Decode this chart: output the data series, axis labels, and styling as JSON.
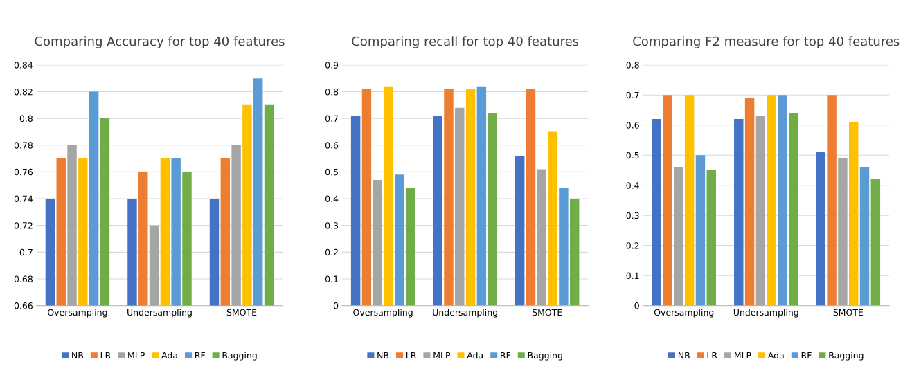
{
  "chart_data": [
    {
      "type": "bar",
      "title": "Comparing Accuracy for top 40 features",
      "categories": [
        "Oversampling",
        "Undersampling",
        "SMOTE"
      ],
      "series": [
        {
          "name": "NB",
          "color": "#4472c4",
          "values": [
            0.74,
            0.74,
            0.74
          ]
        },
        {
          "name": "LR",
          "color": "#ed7d31",
          "values": [
            0.77,
            0.76,
            0.77
          ]
        },
        {
          "name": "MLP",
          "color": "#a5a5a5",
          "values": [
            0.78,
            0.72,
            0.78
          ]
        },
        {
          "name": "Ada",
          "color": "#ffc000",
          "values": [
            0.77,
            0.77,
            0.81
          ]
        },
        {
          "name": "RF",
          "color": "#5b9bd5",
          "values": [
            0.82,
            0.77,
            0.83
          ]
        },
        {
          "name": "Bagging",
          "color": "#70ad47",
          "values": [
            0.8,
            0.76,
            0.81
          ]
        }
      ],
      "ylim": [
        0.66,
        0.84
      ],
      "yticks": [
        0.66,
        0.68,
        0.7,
        0.72,
        0.74,
        0.76,
        0.78,
        0.8,
        0.82,
        0.84
      ],
      "grid": "y",
      "legend": "bottom"
    },
    {
      "type": "bar",
      "title": "Comparing recall for top 40 features",
      "categories": [
        "Oversampling",
        "Undersampling",
        "SMOTE"
      ],
      "series": [
        {
          "name": "NB",
          "color": "#4472c4",
          "values": [
            0.71,
            0.71,
            0.56
          ]
        },
        {
          "name": "LR",
          "color": "#ed7d31",
          "values": [
            0.81,
            0.81,
            0.81
          ]
        },
        {
          "name": "MLP",
          "color": "#a5a5a5",
          "values": [
            0.47,
            0.74,
            0.51
          ]
        },
        {
          "name": "Ada",
          "color": "#ffc000",
          "values": [
            0.82,
            0.81,
            0.65
          ]
        },
        {
          "name": "RF",
          "color": "#5b9bd5",
          "values": [
            0.49,
            0.82,
            0.44
          ]
        },
        {
          "name": "Bagging",
          "color": "#70ad47",
          "values": [
            0.44,
            0.72,
            0.4
          ]
        }
      ],
      "ylim": [
        0,
        0.9
      ],
      "yticks": [
        0,
        0.1,
        0.2,
        0.3,
        0.4,
        0.5,
        0.6,
        0.7,
        0.8,
        0.9
      ],
      "grid": "y",
      "legend": "bottom"
    },
    {
      "type": "bar",
      "title": "Comparing F2 measure for top 40 features",
      "categories": [
        "Oversampling",
        "Undersampling",
        "SMOTE"
      ],
      "series": [
        {
          "name": "NB",
          "color": "#4472c4",
          "values": [
            0.62,
            0.62,
            0.51
          ]
        },
        {
          "name": "LR",
          "color": "#ed7d31",
          "values": [
            0.7,
            0.69,
            0.7
          ]
        },
        {
          "name": "MLP",
          "color": "#a5a5a5",
          "values": [
            0.46,
            0.63,
            0.49
          ]
        },
        {
          "name": "Ada",
          "color": "#ffc000",
          "values": [
            0.7,
            0.7,
            0.61
          ]
        },
        {
          "name": "RF",
          "color": "#5b9bd5",
          "values": [
            0.5,
            0.7,
            0.46
          ]
        },
        {
          "name": "Bagging",
          "color": "#70ad47",
          "values": [
            0.45,
            0.64,
            0.42
          ]
        }
      ],
      "ylim": [
        0,
        0.8
      ],
      "yticks": [
        0,
        0.1,
        0.2,
        0.3,
        0.4,
        0.5,
        0.6,
        0.7,
        0.8
      ],
      "grid": "y",
      "legend": "bottom"
    }
  ]
}
